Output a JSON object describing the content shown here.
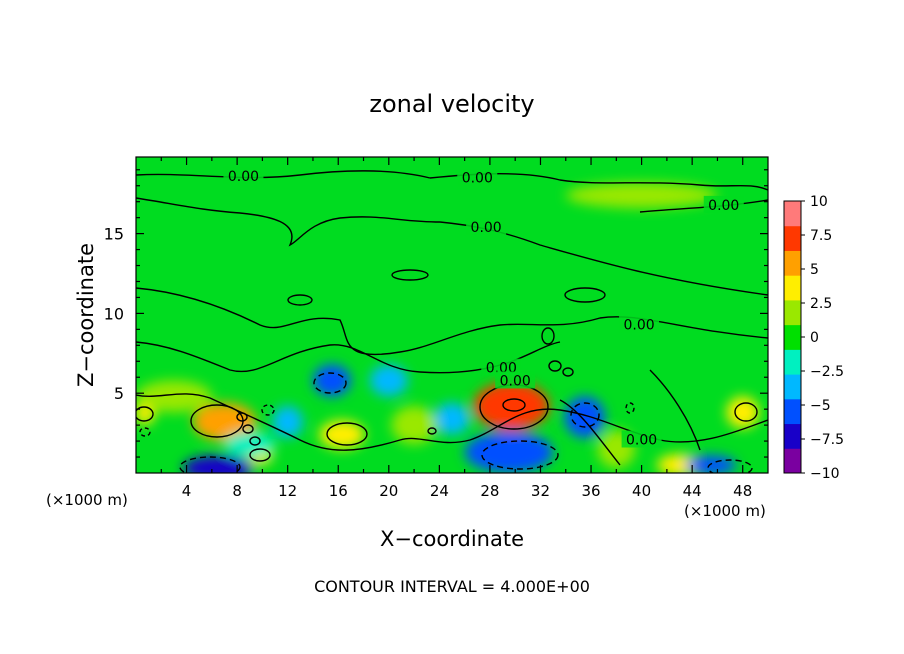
{
  "chart_data": {
    "type": "heatmap",
    "title": "zonal velocity",
    "xlabel": "X−coordinate",
    "ylabel": "Z−coordinate",
    "x_unit_left": "(×1000 m)",
    "x_unit_right": "(×1000 m)",
    "footer": "CONTOUR INTERVAL = 4.000E+00",
    "xlim": [
      0,
      50
    ],
    "ylim": [
      0,
      19.8
    ],
    "x_ticks": [
      4,
      8,
      12,
      16,
      20,
      24,
      28,
      32,
      36,
      40,
      44,
      48
    ],
    "y_ticks": [
      5,
      10,
      15
    ],
    "x_tick_labels": [
      "4",
      "8",
      "12",
      "16",
      "20",
      "24",
      "28",
      "32",
      "36",
      "40",
      "44",
      "48"
    ],
    "y_tick_labels": [
      "5",
      "10",
      "15"
    ],
    "colorbar": {
      "range": [
        -10,
        10
      ],
      "ticks": [
        10,
        7.5,
        5,
        2.5,
        0,
        -2.5,
        -5,
        -7.5,
        -10
      ],
      "tick_labels": [
        "10",
        "7.5",
        "5",
        "2.5",
        "0",
        "−2.5",
        "−5",
        "−7.5",
        "−10"
      ],
      "colors": [
        "#7a00a0",
        "#1800c8",
        "#0050ff",
        "#00b8ff",
        "#00f0c0",
        "#00e000",
        "#9ae800",
        "#ffee00",
        "#ffa000",
        "#ff3800",
        "#ff7a7a"
      ]
    },
    "contour_labels": [
      {
        "text": "0.00",
        "x": 8.5,
        "y": 18.6
      },
      {
        "text": "0.00",
        "x": 27,
        "y": 18.5
      },
      {
        "text": "0.00",
        "x": 46.5,
        "y": 16.8
      },
      {
        "text": "0.00",
        "x": 27.7,
        "y": 15.4
      },
      {
        "text": "0.00",
        "x": 39.8,
        "y": 9.3
      },
      {
        "text": "0.00",
        "x": 28.9,
        "y": 6.6
      },
      {
        "text": "0.00",
        "x": 30,
        "y": 5.8
      },
      {
        "text": "0.00",
        "x": 40,
        "y": 2.1
      }
    ],
    "features": [
      {
        "value": 7.5,
        "x": 29.7,
        "y": 4.2,
        "rx": 3.0,
        "ry": 1.5
      },
      {
        "value": 5,
        "x": 7.0,
        "y": 3.2,
        "rx": 2.5,
        "ry": 1.2
      },
      {
        "value": 4,
        "x": 16.3,
        "y": 2.4,
        "rx": 1.8,
        "ry": 0.9
      },
      {
        "value": 4,
        "x": 43.0,
        "y": 0.5,
        "rx": 1.8,
        "ry": 0.7
      },
      {
        "value": 4,
        "x": 0.7,
        "y": 3.8,
        "rx": 0.8,
        "ry": 0.8
      },
      {
        "value": 3,
        "x": 48.0,
        "y": 3.8,
        "rx": 1.3,
        "ry": 1.0
      },
      {
        "value": 3,
        "x": 9.8,
        "y": 1.1,
        "rx": 1.0,
        "ry": 0.6
      },
      {
        "value": -6,
        "x": 15.5,
        "y": 5.8,
        "rx": 1.5,
        "ry": 1.0
      },
      {
        "value": -8,
        "x": 6.5,
        "y": 0.3,
        "rx": 2.8,
        "ry": 0.8
      },
      {
        "value": -6,
        "x": 29.5,
        "y": 1.3,
        "rx": 3.5,
        "ry": 1.3
      },
      {
        "value": -5,
        "x": 35.5,
        "y": 3.5,
        "rx": 1.6,
        "ry": 1.3
      },
      {
        "value": -5,
        "x": 45.5,
        "y": 0.5,
        "rx": 2.0,
        "ry": 0.6
      },
      {
        "value": -3,
        "x": 20.0,
        "y": 5.8,
        "rx": 1.5,
        "ry": 1.0
      },
      {
        "value": -3,
        "x": 12.0,
        "y": 3.2,
        "rx": 1.2,
        "ry": 1.0
      },
      {
        "value": -3,
        "x": 25.0,
        "y": 3.4,
        "rx": 1.4,
        "ry": 1.0
      },
      {
        "value": 2,
        "x": 3.0,
        "y": 4.8,
        "rx": 3.0,
        "ry": 1.0
      },
      {
        "value": 2,
        "x": 22.0,
        "y": 3.0,
        "rx": 1.8,
        "ry": 1.2
      },
      {
        "value": 1.5,
        "x": 40.0,
        "y": 17.4,
        "rx": 6.0,
        "ry": 0.8
      },
      {
        "value": -2,
        "x": 9.0,
        "y": 1.8,
        "rx": 2.0,
        "ry": 0.8
      },
      {
        "value": 2,
        "x": 38.0,
        "y": 1.5,
        "rx": 1.5,
        "ry": 1.2
      }
    ]
  }
}
